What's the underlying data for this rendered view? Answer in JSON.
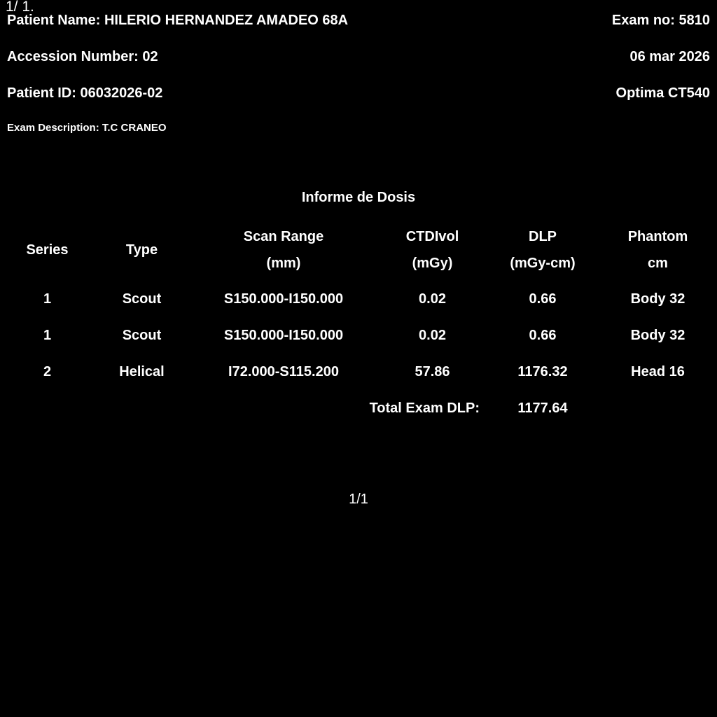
{
  "colors": {
    "background": "#000000",
    "text": "#ffffff"
  },
  "page_overlay": {
    "top_left": "1/ 1."
  },
  "header": {
    "patient_name": {
      "label": "Patient Name:",
      "value": "HILERIO HERNANDEZ AMADEO 68A"
    },
    "exam_no": {
      "label": "Exam no:",
      "value": "5810"
    },
    "accession": {
      "label": "Accession Number:",
      "value": "02"
    },
    "exam_date": "06 mar 2026",
    "patient_id": {
      "label": "Patient ID:",
      "value": "06032026-02"
    },
    "scanner_model": "Optima CT540",
    "exam_description": {
      "label": "Exam Description:",
      "value": "T.C CRANEO"
    }
  },
  "dose_report": {
    "title": "Informe de Dosis",
    "columns": [
      {
        "line1": "Series",
        "line2": ""
      },
      {
        "line1": "Type",
        "line2": ""
      },
      {
        "line1": "Scan Range",
        "line2": "(mm)"
      },
      {
        "line1": "CTDIvol",
        "line2": "(mGy)"
      },
      {
        "line1": "DLP",
        "line2": "(mGy-cm)"
      },
      {
        "line1": "Phantom",
        "line2": "cm"
      }
    ],
    "rows": [
      {
        "series": "1",
        "type": "Scout",
        "scan_range": "S150.000-I150.000",
        "ctdivol": "0.02",
        "dlp": "0.66",
        "phantom": "Body 32"
      },
      {
        "series": "1",
        "type": "Scout",
        "scan_range": "S150.000-I150.000",
        "ctdivol": "0.02",
        "dlp": "0.66",
        "phantom": "Body 32"
      },
      {
        "series": "2",
        "type": "Helical",
        "scan_range": "I72.000-S115.200",
        "ctdivol": "57.86",
        "dlp": "1176.32",
        "phantom": "Head 16"
      }
    ],
    "total": {
      "label": "Total Exam DLP:",
      "value": "1177.64"
    }
  },
  "pagination": {
    "page_indicator": "1/1"
  }
}
